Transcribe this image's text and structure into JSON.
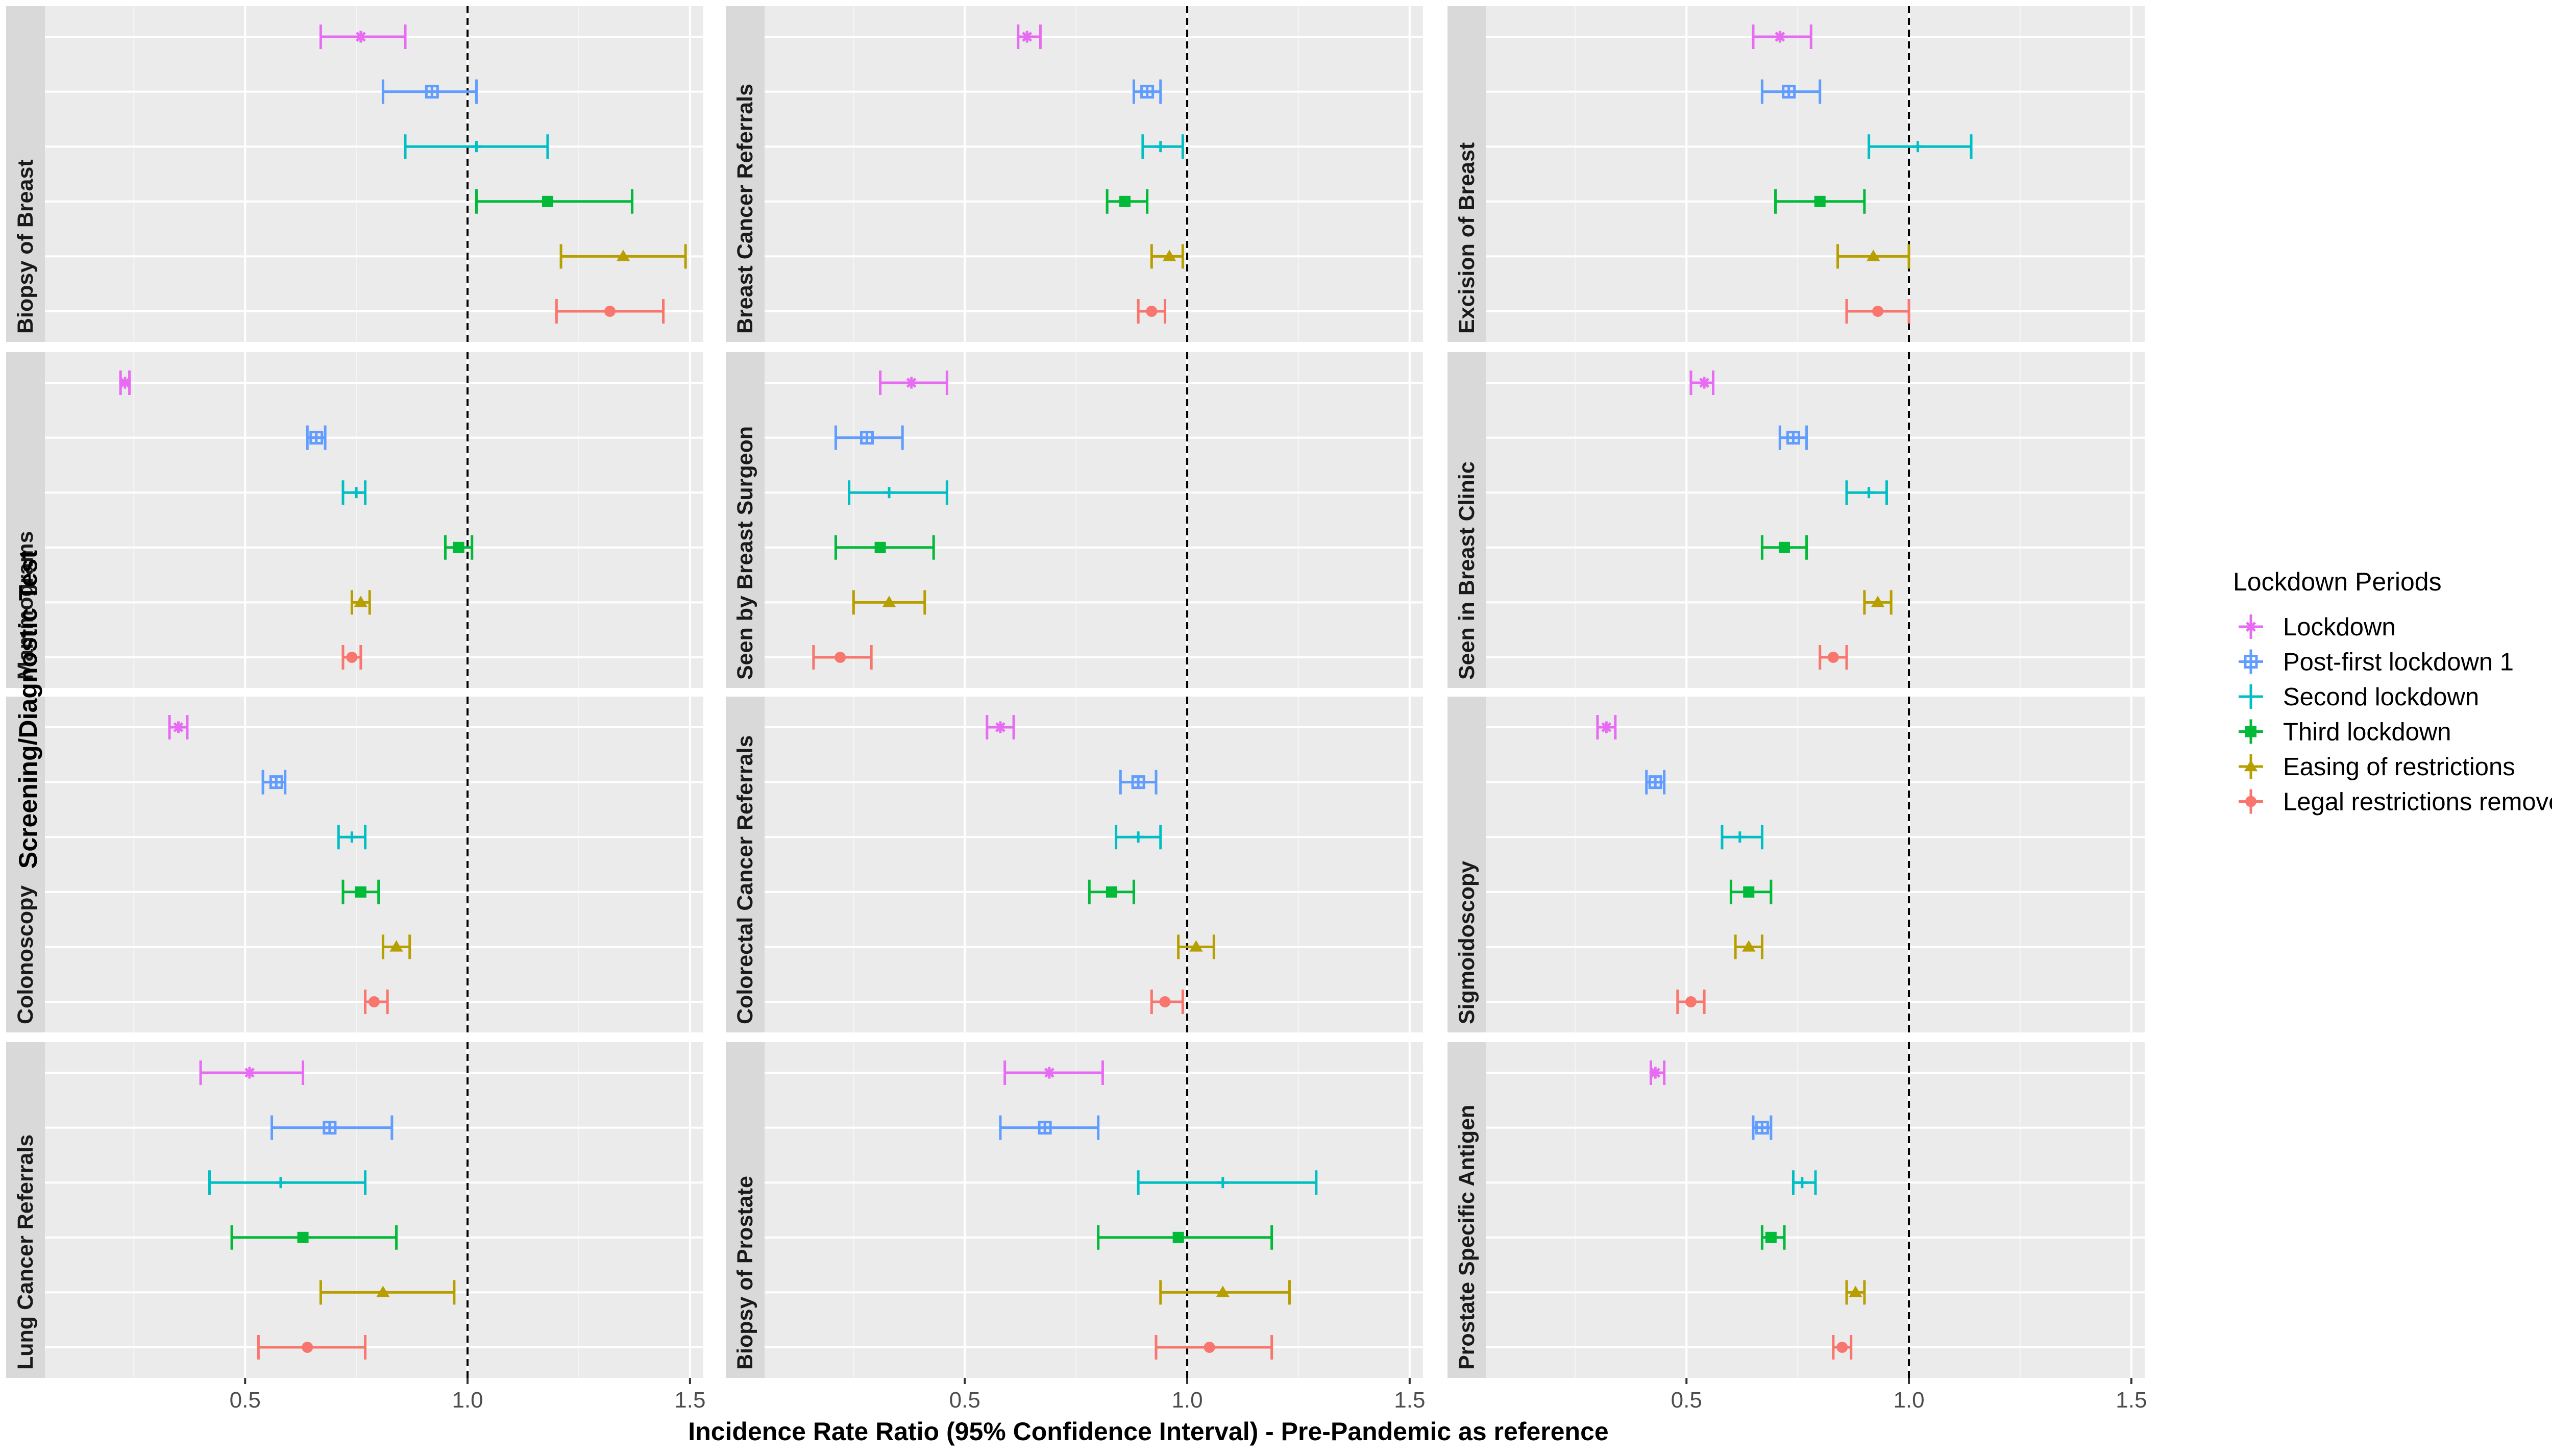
{
  "chart_data": {
    "type": "forest",
    "xlabel": "Incidence Rate Ratio (95% Confidence Interval) - Pre-Pandemic as reference",
    "ylabel": "Screening/Diagnostic Test",
    "xlim": [
      0.05,
      1.53
    ],
    "x_ticks": [
      0.5,
      1.0,
      1.5
    ],
    "x_tick_labels": [
      "0.5",
      "1.0",
      "1.5"
    ],
    "reference_line": 1.0,
    "grid": true,
    "legend": {
      "title": "Lockdown Periods",
      "position": "right",
      "entries": [
        {
          "name": "Lockdown",
          "color": "#E76BF3",
          "shape": "asterisk"
        },
        {
          "name": "Post-first lockdown 1",
          "color": "#619CFF",
          "shape": "square-cross"
        },
        {
          "name": "Second lockdown",
          "color": "#00BFC4",
          "shape": "plus"
        },
        {
          "name": "Third lockdown",
          "color": "#00BA38",
          "shape": "square"
        },
        {
          "name": "Easing of restrictions",
          "color": "#B79F00",
          "shape": "triangle"
        },
        {
          "name": "Legal restrictions removed",
          "color": "#F8766D",
          "shape": "circle"
        }
      ]
    },
    "panels": [
      {
        "name": "Biopsy of Breast",
        "estimates": [
          0.76,
          0.92,
          1.02,
          1.18,
          1.35,
          1.32
        ],
        "lower": [
          0.67,
          0.81,
          0.86,
          1.02,
          1.21,
          1.2
        ],
        "upper": [
          0.86,
          1.02,
          1.18,
          1.37,
          1.49,
          1.44
        ]
      },
      {
        "name": "Breast Cancer Referrals",
        "estimates": [
          0.64,
          0.91,
          0.94,
          0.86,
          0.96,
          0.92
        ],
        "lower": [
          0.62,
          0.88,
          0.9,
          0.82,
          0.92,
          0.89
        ],
        "upper": [
          0.67,
          0.94,
          0.99,
          0.91,
          0.99,
          0.95
        ]
      },
      {
        "name": "Excision of Breast",
        "estimates": [
          0.71,
          0.73,
          1.02,
          0.8,
          0.92,
          0.93
        ],
        "lower": [
          0.65,
          0.67,
          0.91,
          0.7,
          0.84,
          0.86
        ],
        "upper": [
          0.78,
          0.8,
          1.14,
          0.9,
          1.0,
          1.0
        ]
      },
      {
        "name": "Mammograms",
        "estimates": [
          0.23,
          0.66,
          0.75,
          0.98,
          0.76,
          0.74
        ],
        "lower": [
          0.22,
          0.64,
          0.72,
          0.95,
          0.74,
          0.72
        ],
        "upper": [
          0.24,
          0.68,
          0.77,
          1.01,
          0.78,
          0.76
        ]
      },
      {
        "name": "Seen by Breast Surgeon",
        "estimates": [
          0.38,
          0.28,
          0.33,
          0.31,
          0.33,
          0.22
        ],
        "lower": [
          0.31,
          0.21,
          0.24,
          0.21,
          0.25,
          0.16
        ],
        "upper": [
          0.46,
          0.36,
          0.46,
          0.43,
          0.41,
          0.29
        ]
      },
      {
        "name": "Seen in Breast Clinic",
        "estimates": [
          0.54,
          0.74,
          0.91,
          0.72,
          0.93,
          0.83
        ],
        "lower": [
          0.51,
          0.71,
          0.86,
          0.67,
          0.9,
          0.8
        ],
        "upper": [
          0.56,
          0.77,
          0.95,
          0.77,
          0.96,
          0.86
        ]
      },
      {
        "name": "Colonoscopy",
        "estimates": [
          0.35,
          0.57,
          0.74,
          0.76,
          0.84,
          0.79
        ],
        "lower": [
          0.33,
          0.54,
          0.71,
          0.72,
          0.81,
          0.77
        ],
        "upper": [
          0.37,
          0.59,
          0.77,
          0.8,
          0.87,
          0.82
        ]
      },
      {
        "name": "Colorectal Cancer Referrals",
        "estimates": [
          0.58,
          0.89,
          0.89,
          0.83,
          1.02,
          0.95
        ],
        "lower": [
          0.55,
          0.85,
          0.84,
          0.78,
          0.98,
          0.92
        ],
        "upper": [
          0.61,
          0.93,
          0.94,
          0.88,
          1.06,
          0.99
        ]
      },
      {
        "name": "Sigmoidoscopy",
        "estimates": [
          0.32,
          0.43,
          0.62,
          0.64,
          0.64,
          0.51
        ],
        "lower": [
          0.3,
          0.41,
          0.58,
          0.6,
          0.61,
          0.48
        ],
        "upper": [
          0.34,
          0.45,
          0.67,
          0.69,
          0.67,
          0.54
        ]
      },
      {
        "name": "Lung Cancer Referrals",
        "estimates": [
          0.51,
          0.69,
          0.58,
          0.63,
          0.81,
          0.64
        ],
        "lower": [
          0.4,
          0.56,
          0.42,
          0.47,
          0.67,
          0.53
        ],
        "upper": [
          0.63,
          0.83,
          0.77,
          0.84,
          0.97,
          0.77
        ]
      },
      {
        "name": "Biopsy of Prostate",
        "estimates": [
          0.69,
          0.68,
          1.08,
          0.98,
          1.08,
          1.05
        ],
        "lower": [
          0.59,
          0.58,
          0.89,
          0.8,
          0.94,
          0.93
        ],
        "upper": [
          0.81,
          0.8,
          1.29,
          1.19,
          1.23,
          1.19
        ]
      },
      {
        "name": "Prostate Specific Antigen",
        "estimates": [
          0.43,
          0.67,
          0.76,
          0.69,
          0.88,
          0.85
        ],
        "lower": [
          0.42,
          0.65,
          0.74,
          0.67,
          0.86,
          0.83
        ],
        "upper": [
          0.45,
          0.69,
          0.79,
          0.72,
          0.9,
          0.87
        ]
      }
    ]
  }
}
